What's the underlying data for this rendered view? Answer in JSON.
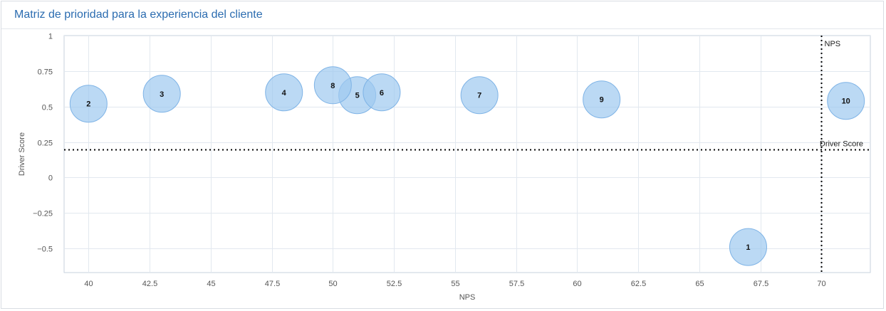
{
  "panel": {
    "title": "Matriz de prioridad para la experiencia del cliente"
  },
  "chart_data": {
    "type": "bubble",
    "xlabel": "NPS",
    "ylabel": "Driver Score",
    "xlim": [
      39,
      72
    ],
    "ylim": [
      -0.67,
      1
    ],
    "xticks": [
      "40",
      "42.5",
      "45",
      "47.5",
      "50",
      "52.5",
      "55",
      "57.5",
      "60",
      "62.5",
      "65",
      "67.5",
      "70"
    ],
    "xtick_values": [
      40,
      42.5,
      45,
      47.5,
      50,
      52.5,
      55,
      57.5,
      60,
      62.5,
      65,
      67.5,
      70
    ],
    "yticks": [
      "1",
      "0.75",
      "0.5",
      "0.25",
      "0",
      "−0.25",
      "−0.5"
    ],
    "ytick_values": [
      1,
      0.75,
      0.5,
      0.25,
      0,
      -0.25,
      -0.5
    ],
    "grid": true,
    "bubble_color": "#9ec9f0",
    "points": [
      {
        "label": "1",
        "x": 67,
        "y": -0.49
      },
      {
        "label": "2",
        "x": 40,
        "y": 0.52
      },
      {
        "label": "3",
        "x": 43,
        "y": 0.59
      },
      {
        "label": "4",
        "x": 48,
        "y": 0.6
      },
      {
        "label": "5",
        "x": 51,
        "y": 0.58
      },
      {
        "label": "6",
        "x": 52,
        "y": 0.6
      },
      {
        "label": "7",
        "x": 56,
        "y": 0.58
      },
      {
        "label": "8",
        "x": 50,
        "y": 0.65
      },
      {
        "label": "9",
        "x": 61,
        "y": 0.55
      },
      {
        "label": "10",
        "x": 71,
        "y": 0.54
      }
    ],
    "reference_lines": [
      {
        "axis": "x",
        "value": 70,
        "label": "NPS"
      },
      {
        "axis": "y",
        "value": 0.2,
        "label": "Driver Score"
      }
    ]
  }
}
